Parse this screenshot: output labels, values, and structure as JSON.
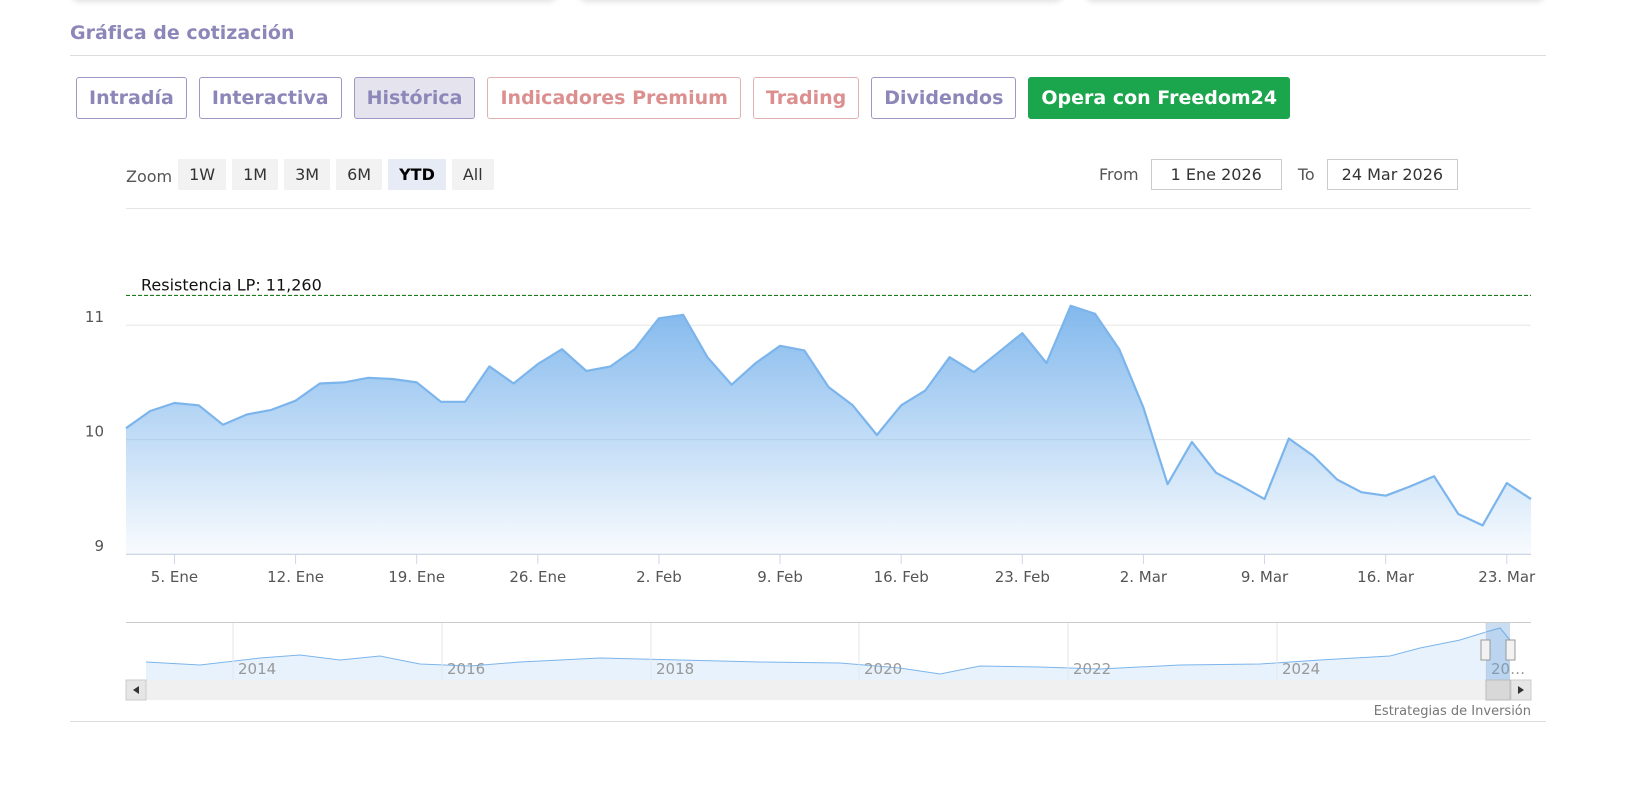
{
  "section_title": "Gráfica de cotización",
  "tabs": [
    "Intradía",
    "Interactiva",
    "Histórica",
    "Indicadores Premium",
    "Trading",
    "Dividendos",
    "Opera con Freedom24"
  ],
  "zoom": {
    "label": "Zoom",
    "buttons": [
      "1W",
      "1M",
      "3M",
      "6M",
      "YTD",
      "All"
    ]
  },
  "range": {
    "from_label": "From",
    "from": "1 Ene 2026",
    "to_label": "To",
    "to": "24 Mar 2026"
  },
  "chart_data": {
    "type": "area",
    "categories": [
      null,
      null,
      "5. Ene",
      null,
      null,
      null,
      null,
      "12. Ene",
      null,
      null,
      null,
      null,
      "19. Ene",
      null,
      null,
      null,
      null,
      "26. Ene",
      null,
      null,
      null,
      null,
      "2. Feb",
      null,
      null,
      null,
      null,
      "9. Feb",
      null,
      null,
      null,
      null,
      "16. Feb",
      null,
      null,
      null,
      null,
      "23. Feb",
      null,
      null,
      null,
      null,
      "2. Mar",
      null,
      null,
      null,
      null,
      "9. Mar",
      null,
      null,
      null,
      null,
      "16. Mar",
      null,
      null,
      null,
      null,
      "23. Mar",
      null
    ],
    "values": [
      10.1,
      10.25,
      10.32,
      10.3,
      10.13,
      10.22,
      10.26,
      10.34,
      10.49,
      10.5,
      10.54,
      10.53,
      10.5,
      10.33,
      10.33,
      10.64,
      10.49,
      10.66,
      10.79,
      10.6,
      10.64,
      10.79,
      11.06,
      11.09,
      10.72,
      10.48,
      10.67,
      10.82,
      10.78,
      10.46,
      10.3,
      10.04,
      10.3,
      10.43,
      10.72,
      10.59,
      10.76,
      10.93,
      10.67,
      11.17,
      11.1,
      10.79,
      10.28,
      9.61,
      9.98,
      9.71,
      9.6,
      9.48,
      10.01,
      9.86,
      9.65,
      9.54,
      9.51,
      9.59,
      9.68,
      9.35,
      9.25,
      9.62,
      9.48
    ],
    "color": "#7cb5ec",
    "ylim": [
      9,
      11.5
    ],
    "yticks": [
      9,
      10,
      11
    ],
    "grid": true,
    "annotations": [
      {
        "label": "Resistencia LP: 11,260",
        "value": 11.26,
        "color": "#1f7a1f"
      }
    ]
  },
  "navigator": {
    "labels": [
      "2014",
      "2016",
      "2018",
      "2020",
      "2022",
      "2024",
      "20…"
    ]
  },
  "credit": "Estrategias de Inversión"
}
